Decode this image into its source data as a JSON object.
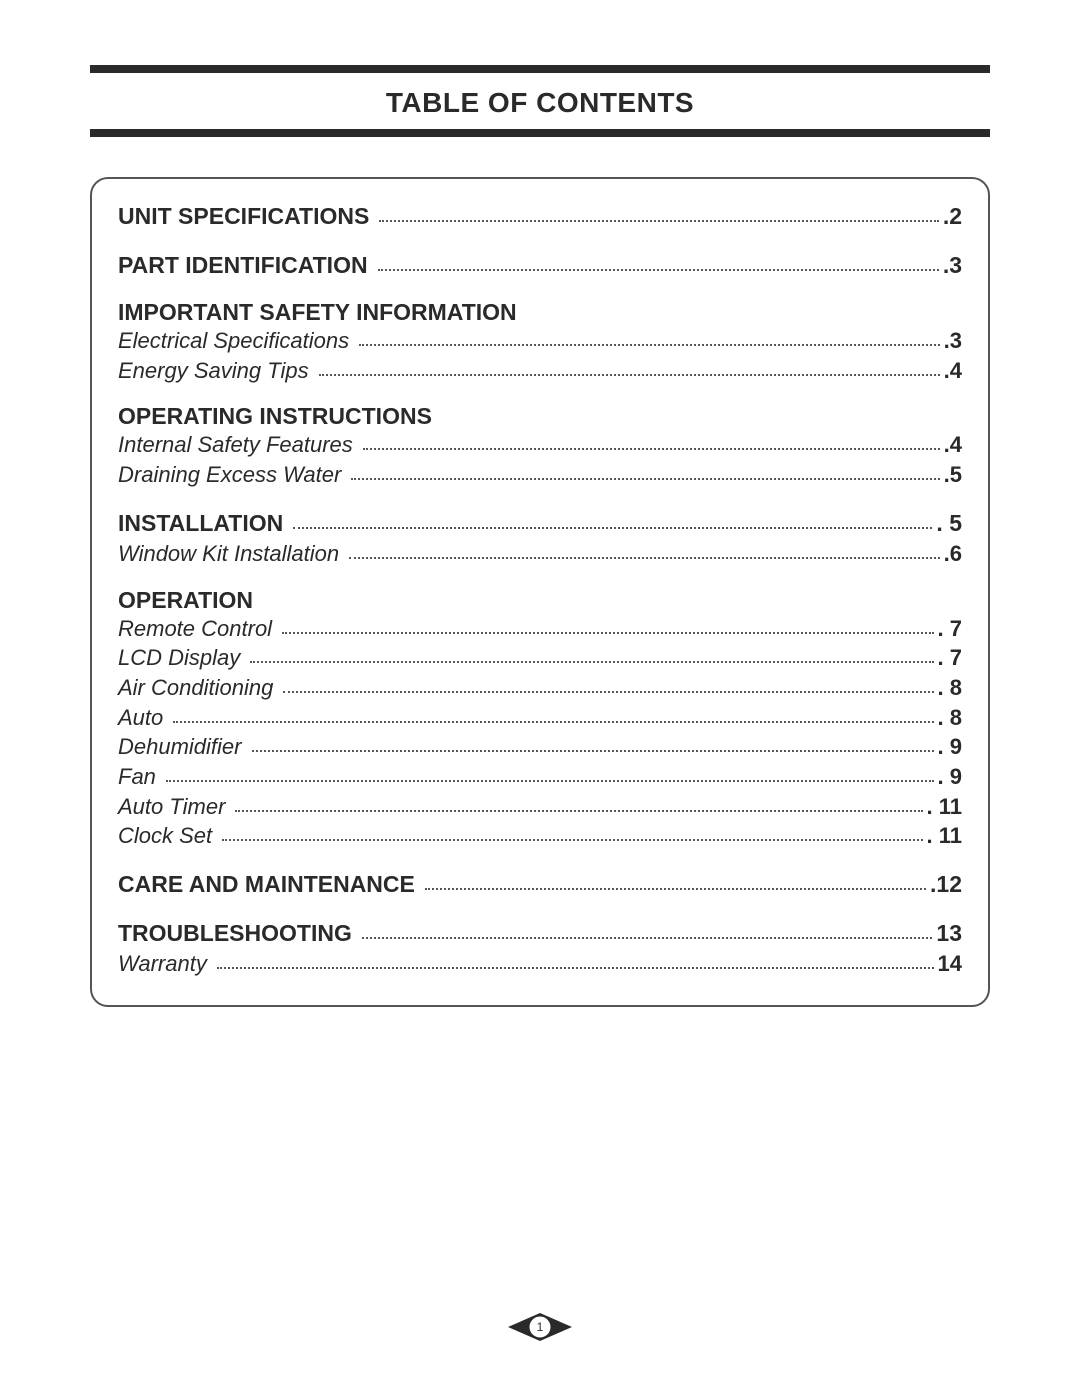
{
  "title": "TABLE OF CONTENTS",
  "page_number": "1",
  "colors": {
    "text": "#2a2a2a",
    "rule": "#2a2a2a",
    "border": "#555555",
    "dots": "#555555",
    "background": "#ffffff",
    "badge_fill": "#2a2a2a",
    "badge_stroke": "#2a2a2a",
    "badge_inner": "#ffffff"
  },
  "typography": {
    "title_fontsize": 28,
    "heading_fontsize": 23,
    "subitem_fontsize": 22,
    "font_family": "Arial"
  },
  "sections": [
    {
      "heading": {
        "label": "UNIT SPECIFICATIONS",
        "page": ".2"
      },
      "items": []
    },
    {
      "heading": {
        "label": "PART IDENTIFICATION",
        "page": ".3"
      },
      "items": []
    },
    {
      "heading": {
        "label": "IMPORTANT SAFETY INFORMATION",
        "page": null
      },
      "items": [
        {
          "label": "Electrical Specifications",
          "page": ".3"
        },
        {
          "label": "Energy Saving Tips",
          "page": ".4"
        }
      ]
    },
    {
      "heading": {
        "label": "OPERATING INSTRUCTIONS",
        "page": null
      },
      "items": [
        {
          "label": "Internal Safety Features",
          "page": ".4"
        },
        {
          "label": "Draining Excess Water",
          "page": ".5"
        }
      ]
    },
    {
      "heading": {
        "label": "INSTALLATION",
        "page": ". 5"
      },
      "items": [
        {
          "label": "Window Kit Installation",
          "page": ".6"
        }
      ]
    },
    {
      "heading": {
        "label": "OPERATION",
        "page": null
      },
      "items": [
        {
          "label": "Remote Control",
          "page": ". 7"
        },
        {
          "label": "LCD Display",
          "page": ". 7"
        },
        {
          "label": "Air Conditioning",
          "page": ". 8"
        },
        {
          "label": "Auto",
          "page": ". 8"
        },
        {
          "label": "Dehumidifier",
          "page": ". 9"
        },
        {
          "label": "Fan",
          "page": ". 9"
        },
        {
          "label": "Auto Timer",
          "page": ". 11"
        },
        {
          "label": "Clock Set",
          "page": ". 11"
        }
      ]
    },
    {
      "heading": {
        "label": "CARE AND MAINTENANCE",
        "page": ".12"
      },
      "items": []
    },
    {
      "heading": {
        "label": "TROUBLESHOOTING",
        "page": " 13"
      },
      "items": [
        {
          "label": "Warranty",
          "page": " 14"
        }
      ]
    }
  ]
}
